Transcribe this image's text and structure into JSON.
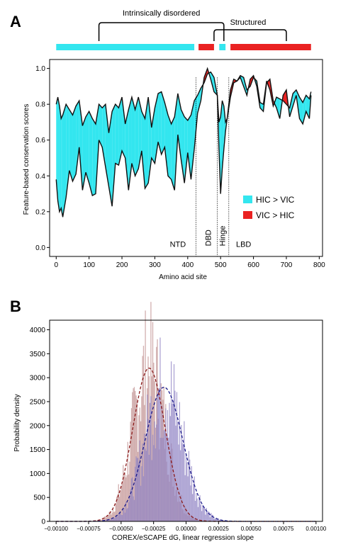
{
  "chart_data": [
    {
      "panel": "A",
      "type": "area",
      "xlabel": "Amino acid site",
      "ylabel": "Feature-based conservation scores",
      "xlim": [
        -20,
        810
      ],
      "ylim": [
        -0.05,
        1.05
      ],
      "xticks": [
        0,
        100,
        200,
        300,
        400,
        500,
        600,
        700,
        800
      ],
      "yticks": [
        0.0,
        0.2,
        0.4,
        0.6,
        0.8,
        1.0
      ],
      "grid": false,
      "legend_position": "right",
      "legend": [
        {
          "label": "HIC  > VIC",
          "color": "#33e6ef"
        },
        {
          "label": "VIC > HIC",
          "color": "#ea2222"
        }
      ],
      "region_bars": [
        {
          "start": 0,
          "end": 420,
          "color": "#33e6ef"
        },
        {
          "start": 433,
          "end": 480,
          "color": "#ea2222"
        },
        {
          "start": 496,
          "end": 515,
          "color": "#33e6ef"
        },
        {
          "start": 530,
          "end": 775,
          "color": "#ea2222"
        }
      ],
      "brackets": [
        {
          "label": "Intrinsically disordered",
          "start": 130,
          "end": 510
        },
        {
          "label": "Structured",
          "start": 480,
          "end": 700
        }
      ],
      "domain_lines": [
        425,
        490,
        525
      ],
      "domain_labels": [
        {
          "label": "NTD",
          "x": 370,
          "rotated": false
        },
        {
          "label": "DBD",
          "x": 462,
          "rotated": true
        },
        {
          "label": "Hinge",
          "x": 505,
          "rotated": true
        },
        {
          "label": "LBD",
          "x": 570,
          "rotated": false
        }
      ],
      "series": [
        {
          "key": "HIC",
          "x": [
            0,
            5,
            10,
            15,
            20,
            30,
            40,
            50,
            60,
            70,
            80,
            90,
            100,
            110,
            120,
            130,
            140,
            150,
            160,
            170,
            180,
            190,
            200,
            210,
            220,
            230,
            240,
            250,
            260,
            270,
            280,
            290,
            300,
            310,
            320,
            330,
            340,
            350,
            360,
            370,
            380,
            390,
            400,
            410,
            420,
            430,
            440,
            450,
            460,
            470,
            480,
            490,
            495,
            500,
            505,
            510,
            515,
            520,
            530,
            540,
            550,
            560,
            570,
            580,
            590,
            600,
            610,
            620,
            630,
            640,
            650,
            660,
            670,
            680,
            690,
            700,
            710,
            720,
            730,
            740,
            750,
            760,
            770,
            775
          ],
          "values": [
            0.8,
            0.84,
            0.79,
            0.72,
            0.74,
            0.8,
            0.77,
            0.74,
            0.79,
            0.82,
            0.68,
            0.73,
            0.76,
            0.72,
            0.69,
            0.8,
            0.78,
            0.8,
            0.64,
            0.76,
            0.8,
            0.78,
            0.84,
            0.69,
            0.77,
            0.84,
            0.77,
            0.84,
            0.76,
            0.72,
            0.84,
            0.67,
            0.78,
            0.86,
            0.87,
            0.81,
            0.74,
            0.69,
            0.73,
            0.86,
            0.77,
            0.73,
            0.71,
            0.74,
            0.82,
            0.85,
            0.89,
            0.92,
            0.97,
            0.98,
            0.95,
            0.85,
            0.7,
            0.73,
            0.82,
            0.79,
            0.7,
            0.72,
            0.84,
            0.92,
            0.93,
            0.96,
            0.95,
            0.88,
            0.9,
            0.95,
            0.93,
            0.81,
            0.8,
            0.93,
            0.88,
            0.79,
            0.84,
            0.83,
            0.82,
            0.8,
            0.78,
            0.86,
            0.88,
            0.84,
            0.81,
            0.85,
            0.83,
            0.87
          ]
        },
        {
          "key": "VIC",
          "x": [
            0,
            5,
            10,
            15,
            20,
            30,
            40,
            50,
            60,
            70,
            80,
            90,
            100,
            110,
            120,
            130,
            140,
            150,
            160,
            170,
            180,
            190,
            200,
            210,
            220,
            230,
            240,
            250,
            260,
            270,
            280,
            290,
            300,
            310,
            320,
            330,
            340,
            350,
            360,
            370,
            380,
            390,
            400,
            410,
            420,
            430,
            440,
            450,
            460,
            470,
            480,
            490,
            495,
            500,
            505,
            510,
            515,
            520,
            530,
            540,
            550,
            560,
            570,
            580,
            590,
            600,
            610,
            620,
            630,
            640,
            650,
            660,
            670,
            680,
            690,
            700,
            710,
            720,
            730,
            740,
            750,
            760,
            770,
            775
          ],
          "values": [
            0.38,
            0.26,
            0.2,
            0.22,
            0.17,
            0.28,
            0.43,
            0.37,
            0.41,
            0.56,
            0.32,
            0.42,
            0.36,
            0.29,
            0.3,
            0.6,
            0.56,
            0.45,
            0.34,
            0.23,
            0.47,
            0.46,
            0.54,
            0.5,
            0.32,
            0.47,
            0.4,
            0.44,
            0.54,
            0.33,
            0.36,
            0.5,
            0.47,
            0.59,
            0.52,
            0.56,
            0.4,
            0.38,
            0.32,
            0.63,
            0.49,
            0.36,
            0.53,
            0.38,
            0.55,
            0.75,
            0.82,
            0.95,
            1.0,
            0.94,
            0.87,
            0.85,
            0.55,
            0.3,
            0.44,
            0.55,
            0.65,
            0.72,
            0.88,
            0.94,
            0.93,
            0.95,
            0.9,
            0.85,
            0.94,
            0.96,
            0.9,
            0.78,
            0.76,
            0.92,
            0.94,
            0.82,
            0.78,
            0.72,
            0.85,
            0.88,
            0.73,
            0.79,
            0.85,
            0.72,
            0.69,
            0.76,
            0.72,
            0.85
          ]
        }
      ]
    },
    {
      "panel": "B",
      "type": "histogram",
      "xlabel": "COREX/eSCAPE dG, linear regression slope",
      "ylabel": "Probability density",
      "xlim": [
        -0.00105,
        0.00105
      ],
      "ylim": [
        0,
        4200
      ],
      "xticks": [
        -0.001,
        -0.00075,
        -0.0005,
        -0.00025,
        0.0,
        0.00025,
        0.0005,
        0.00075,
        0.001
      ],
      "xtick_labels": [
        "−0.00100",
        "−0.00075",
        "−0.00050",
        "−0.00025",
        "0.00000",
        "0.00025",
        "0.00050",
        "0.00075",
        "0.00100"
      ],
      "yticks": [
        0,
        500,
        1000,
        1500,
        2000,
        2500,
        3000,
        3500,
        4000
      ],
      "grid": false,
      "series": [
        {
          "key": "red",
          "fill": "#c09090",
          "curve_color": "#8b1a1a",
          "mean": -0.000285,
          "sd": 0.000125,
          "peak": 3200
        },
        {
          "key": "blue",
          "fill": "#8f82c4",
          "curve_color": "#1a1a8b",
          "mean": -0.00017,
          "sd": 0.000145,
          "peak": 2800
        }
      ]
    }
  ]
}
